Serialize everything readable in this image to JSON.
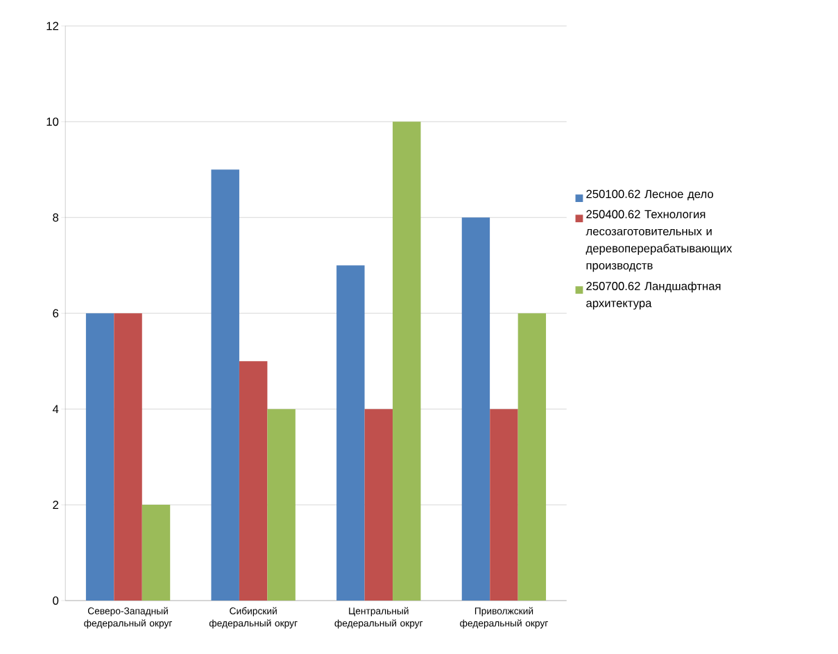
{
  "chart_data": {
    "type": "bar",
    "categories": [
      "Северо-Западный федеральный округ",
      "Сибирский федеральный округ",
      "Центральный федеральный округ",
      "Приволжский федеральный округ"
    ],
    "series": [
      {
        "name": "250100.62 Лесное дело",
        "color": "#4f81bd",
        "values": [
          6,
          9,
          7,
          8
        ]
      },
      {
        "name": "250400.62 Технология лесозаготовительных и деревоперерабатывающих производств",
        "color": "#c0504d",
        "values": [
          6,
          5,
          4,
          4
        ]
      },
      {
        "name": "250700.62 Ландшафтная архитектура",
        "color": "#9bbb59",
        "values": [
          2,
          4,
          10,
          6
        ]
      }
    ],
    "ylim": [
      0,
      12
    ],
    "yticks": [
      0,
      2,
      4,
      6,
      8,
      10,
      12
    ],
    "grid": "y",
    "legend": "right"
  }
}
